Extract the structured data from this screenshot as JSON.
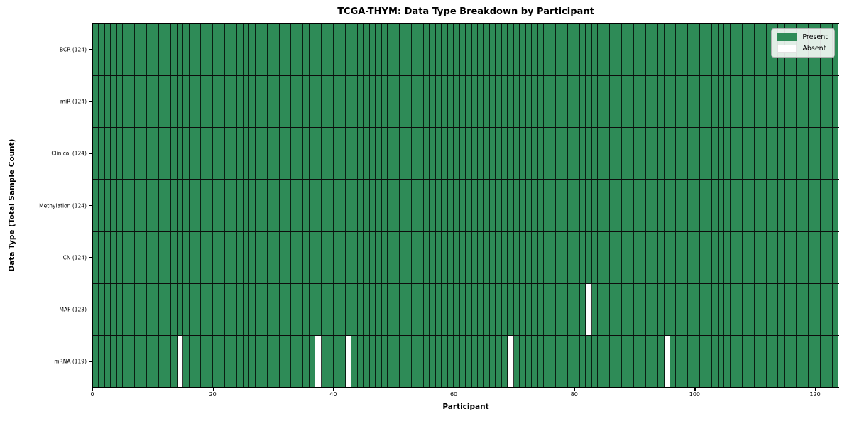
{
  "chart_data": {
    "type": "heatmap",
    "title": "TCGA-THYM: Data Type Breakdown by Participant",
    "xlabel": "Participant",
    "ylabel": "Data Type (Total Sample Count)",
    "x_range": [
      0,
      124
    ],
    "n_participants": 124,
    "x_ticks": [
      0,
      20,
      40,
      60,
      80,
      100,
      120
    ],
    "rows": [
      {
        "label": "BCR (124)",
        "present_count": 124,
        "absent_indices": []
      },
      {
        "label": "miR (124)",
        "present_count": 124,
        "absent_indices": []
      },
      {
        "label": "Clinical (124)",
        "present_count": 124,
        "absent_indices": []
      },
      {
        "label": "Methylation (124)",
        "present_count": 124,
        "absent_indices": []
      },
      {
        "label": "CN (124)",
        "present_count": 124,
        "absent_indices": []
      },
      {
        "label": "MAF (123)",
        "present_count": 123,
        "absent_indices": [
          82
        ]
      },
      {
        "label": "mRNA (119)",
        "present_count": 119,
        "absent_indices": [
          14,
          37,
          42,
          69,
          95
        ]
      }
    ],
    "legend": [
      {
        "label": "Present",
        "color": "#2e8b57"
      },
      {
        "label": "Absent",
        "color": "#ffffff"
      }
    ],
    "colors": {
      "present": "#2e8b57",
      "absent": "#ffffff",
      "grid": "rgba(0,0,0,0.78)"
    },
    "legend_position": "upper right",
    "grid": "per-participant vertical lines, black row separators"
  }
}
